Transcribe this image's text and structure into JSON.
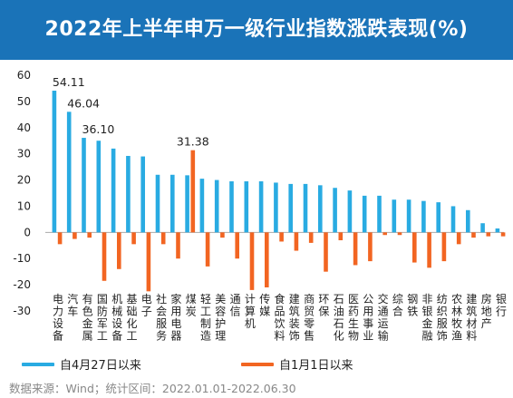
{
  "header": {
    "title": "2022年上半年申万一级行业指数涨跌表现(%)"
  },
  "legend": {
    "series1_label": "自4月27日以来",
    "series2_label": "自1月1日以来"
  },
  "footer": {
    "source": "数据来源：Wind；统计区间：2022.01.01-2022.06.30"
  },
  "colors": {
    "series1": "#29abe2",
    "series2": "#f26522",
    "header_bg": "#1a73b8",
    "axis": "#aaaaaa"
  },
  "chart_data": {
    "type": "bar",
    "categories": [
      "电力设备",
      "汽车",
      "有色金属",
      "国防军工",
      "机械设备",
      "基础化工",
      "电子",
      "社会服务",
      "家用电器",
      "煤炭",
      "轻工制造",
      "美容护理",
      "通信",
      "计算机",
      "传媒",
      "食品饮料",
      "建筑装饰",
      "商贸零售",
      "环保",
      "石油石化",
      "医药生物",
      "公用事业",
      "交通运输",
      "综合",
      "钢铁",
      "非银金融",
      "纺织服饰",
      "农林牧渔",
      "建筑材料",
      "房地产",
      "银行"
    ],
    "series": [
      {
        "name": "自4月27日以来",
        "values": [
          54.11,
          46.04,
          36.1,
          35.0,
          32.0,
          29.2,
          29.0,
          22.0,
          22.0,
          21.8,
          20.5,
          20.0,
          19.5,
          19.5,
          19.5,
          19.0,
          18.5,
          18.5,
          18.0,
          17.0,
          16.0,
          14.0,
          14.0,
          12.5,
          12.5,
          12.0,
          11.5,
          10.0,
          8.5,
          3.5,
          1.5
        ]
      },
      {
        "name": "自1月1日以来",
        "values": [
          -4.5,
          -2.5,
          -2.0,
          -18.5,
          -14.0,
          -4.5,
          -22.5,
          -4.5,
          -10.0,
          31.38,
          -13.0,
          -2.0,
          -10.0,
          -22.0,
          -21.0,
          -3.5,
          -7.0,
          -4.0,
          -15.0,
          -3.0,
          -12.5,
          -11.0,
          -1.0,
          -1.0,
          -11.5,
          -13.5,
          -11.0,
          -4.5,
          -2.0,
          -1.5,
          -1.5
        ]
      }
    ],
    "data_labels": [
      {
        "series": 0,
        "index": 0,
        "text": "54.11"
      },
      {
        "series": 0,
        "index": 1,
        "text": "46.04"
      },
      {
        "series": 0,
        "index": 2,
        "text": "36.10"
      },
      {
        "series": 1,
        "index": 9,
        "text": "31.38"
      }
    ],
    "ylim": [
      -30,
      60
    ],
    "yticks": [
      60,
      50,
      40,
      30,
      20,
      10,
      0,
      -10,
      -20,
      -30
    ],
    "grid": false
  }
}
